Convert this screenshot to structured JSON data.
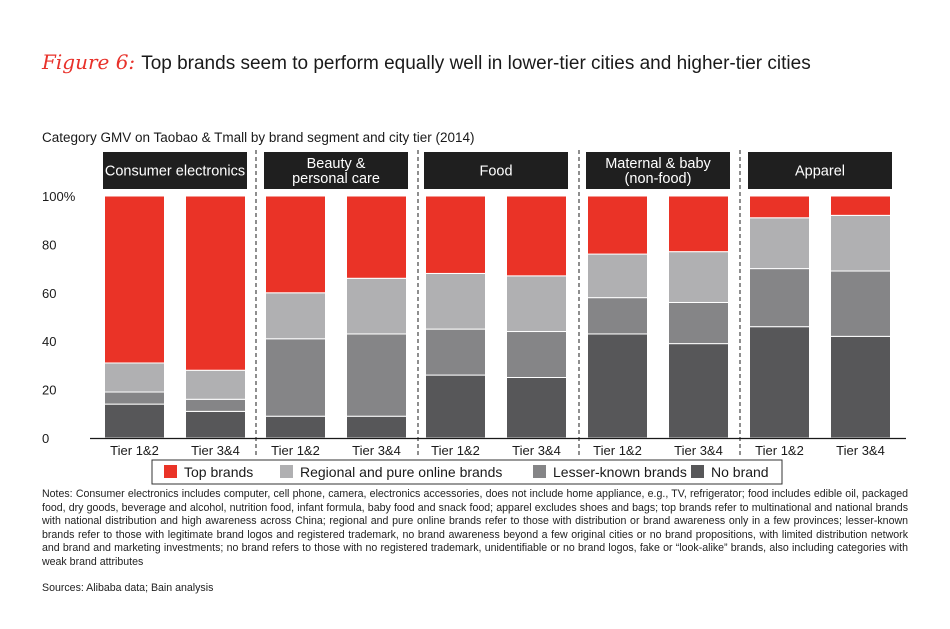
{
  "figure": {
    "label": "Figure 6:",
    "title": "Top brands seem to perform equally well in lower-tier cities and higher-tier cities",
    "subtitle": "Category GMV on Taobao & Tmall by brand segment and city tier (2014)"
  },
  "colors": {
    "top_brands": "#ea3327",
    "regional": "#b0b0b2",
    "lesser_known": "#858587",
    "no_brand": "#575759",
    "header_bg": "#1f1f1f"
  },
  "chart_data": {
    "type": "bar",
    "stacked": true,
    "ylim": [
      0,
      100
    ],
    "yticks": [
      "0",
      "20",
      "40",
      "60",
      "80",
      "100%"
    ],
    "groups": [
      {
        "name": "Consumer electronics",
        "lines": [
          "Consumer electronics"
        ],
        "bars": [
          {
            "label": "Tier 1&2",
            "values": [
              14,
              5,
              12,
              69
            ]
          },
          {
            "label": "Tier 3&4",
            "values": [
              11,
              5,
              12,
              72
            ]
          }
        ]
      },
      {
        "name": "Beauty & personal care",
        "lines": [
          "Beauty &",
          "personal care"
        ],
        "bars": [
          {
            "label": "Tier 1&2",
            "values": [
              9,
              32,
              19,
              40
            ]
          },
          {
            "label": "Tier 3&4",
            "values": [
              9,
              34,
              23,
              34
            ]
          }
        ]
      },
      {
        "name": "Food",
        "lines": [
          "Food"
        ],
        "bars": [
          {
            "label": "Tier 1&2",
            "values": [
              26,
              19,
              23,
              32
            ]
          },
          {
            "label": "Tier 3&4",
            "values": [
              25,
              19,
              23,
              33
            ]
          }
        ]
      },
      {
        "name": "Maternal & baby (non-food)",
        "lines": [
          "Maternal & baby",
          "(non-food)"
        ],
        "bars": [
          {
            "label": "Tier 1&2",
            "values": [
              43,
              15,
              18,
              24
            ]
          },
          {
            "label": "Tier 3&4",
            "values": [
              39,
              17,
              21,
              23
            ]
          }
        ]
      },
      {
        "name": "Apparel",
        "lines": [
          "Apparel"
        ],
        "bars": [
          {
            "label": "Tier 1&2",
            "values": [
              46,
              24,
              21,
              9
            ]
          },
          {
            "label": "Tier 3&4",
            "values": [
              42,
              27,
              23,
              8
            ]
          }
        ]
      }
    ],
    "series": [
      "No brand",
      "Lesser-known brands",
      "Regional and pure online brands",
      "Top brands"
    ],
    "legend": [
      "Top brands",
      "Regional and pure online brands",
      "Lesser-known brands",
      "No brand"
    ]
  },
  "notes": "Notes: Consumer electronics includes computer, cell phone, camera, electronics accessories, does not include home appliance, e.g., TV, refrigerator; food includes edible oil, packaged food, dry goods, beverage and alcohol, nutrition food, infant formula, baby food and snack food; apparel excludes shoes and bags; top brands refer to multinational and national brands with national distribution and high awareness across China; regional and pure online brands refer to those with distribution or brand awareness only in a few provinces; lesser-known brands refer to those with legitimate brand logos and registered trademark, no brand awareness beyond a few original cities or no brand propositions, with limited distribution network and brand and marketing investments; no brand refers to those with no registered trademark, unidentifiable or no brand logos, fake or “look-alike” brands, also including categories with weak brand attributes",
  "sources": "Sources: Alibaba data; Bain analysis"
}
